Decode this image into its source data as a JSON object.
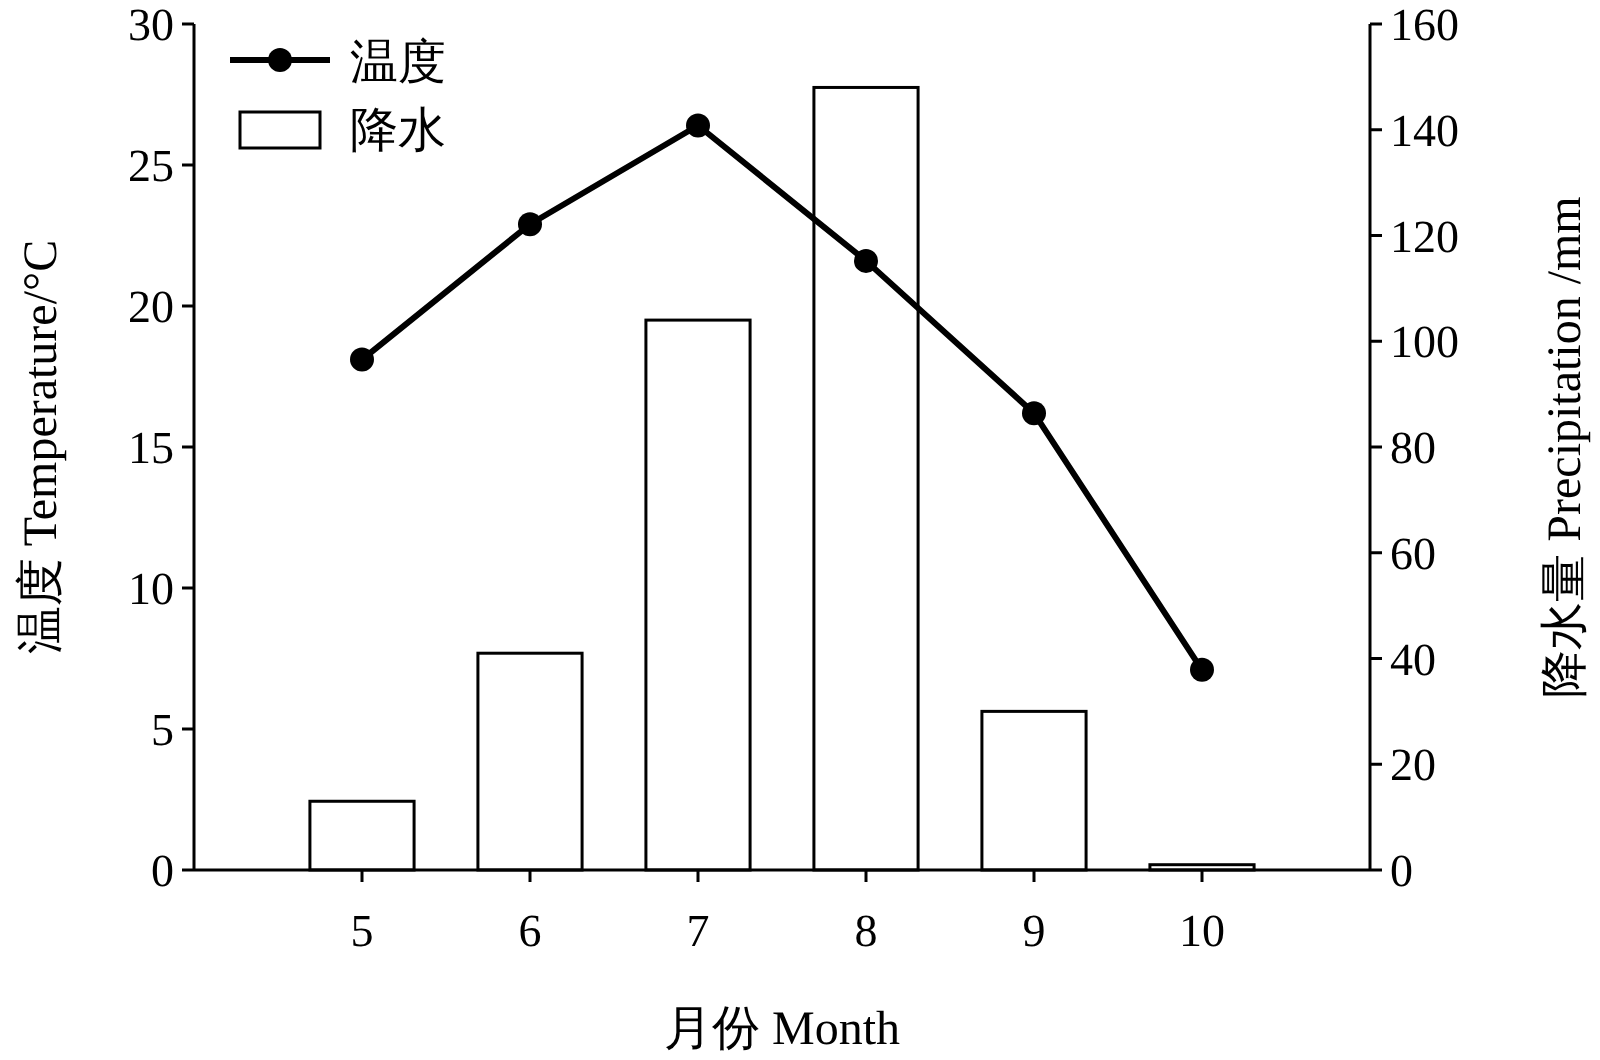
{
  "chart_data": {
    "type": "line",
    "xlabel": "月份 Month",
    "ylabel": "温度 Temperature/°C",
    "y2label": "降水量 Precipitation /mm",
    "categories": [
      "5",
      "6",
      "7",
      "8",
      "9",
      "10"
    ],
    "series": [
      {
        "name": "温度",
        "color": "#000000",
        "marker": "circle",
        "values": [
          18.1,
          22.9,
          26.4,
          21.6,
          16.2,
          7.1
        ]
      },
      {
        "name": "降水",
        "type": "bar",
        "axis": "y2",
        "color": "#ffffff",
        "values": [
          13,
          41,
          104,
          148,
          30,
          1
        ]
      }
    ],
    "ylim": [
      0,
      30
    ],
    "yticks": [
      0,
      5,
      10,
      15,
      20,
      25,
      30
    ],
    "y2lim": [
      0,
      160
    ],
    "y2ticks": [
      0,
      20,
      40,
      60,
      80,
      100,
      120,
      140,
      160
    ],
    "legend": "top left"
  }
}
